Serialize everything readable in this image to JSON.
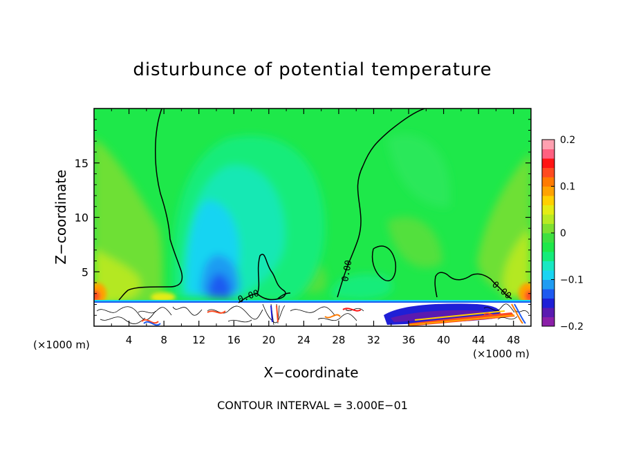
{
  "chart_data": {
    "type": "heatmap",
    "title": "disturbunce of potential temperature",
    "xlabel": "X−coordinate",
    "ylabel": "Z−coordinate",
    "x_unit_left": "(×1000 m)",
    "x_unit_right": "(×1000 m)",
    "xlim": [
      0,
      50
    ],
    "ylim": [
      0,
      20
    ],
    "x_ticks": [
      4,
      8,
      12,
      16,
      20,
      24,
      28,
      32,
      36,
      40,
      44,
      48
    ],
    "x_tick_labels": [
      "4",
      "8",
      "12",
      "16",
      "20",
      "24",
      "28",
      "32",
      "36",
      "40",
      "44",
      "48"
    ],
    "y_ticks": [
      5,
      10,
      15
    ],
    "y_tick_labels": [
      "5",
      "10",
      "15"
    ],
    "colorbar": {
      "range": [
        -0.2,
        0.2
      ],
      "ticks": [
        0.2,
        0.1,
        0,
        -0.1,
        -0.2
      ],
      "tick_labels": [
        "0.2",
        "0.1",
        "0",
        "−0.1",
        "−0.2"
      ],
      "colors": [
        "#8b1fa8",
        "#5a1ab0",
        "#1f1fd6",
        "#1e5af0",
        "#1f9cf2",
        "#19d4f2",
        "#18e8c2",
        "#14ec7a",
        "#1ee84a",
        "#3ee040",
        "#7ee030",
        "#b8ea22",
        "#e4ec14",
        "#ffd000",
        "#ffa200",
        "#ff7a00",
        "#ff4a20",
        "#ff1414",
        "#ff6080",
        "#ffa0b0"
      ]
    },
    "contour_labels": [
      "0.00",
      "0.00",
      "0.00"
    ],
    "contour_interval": "CONTOUR INTERVAL = 3.000E−01",
    "background_value": 0.0,
    "features": [
      {
        "name": "cool-core",
        "x": 14.5,
        "z": 6.0,
        "value": -0.1
      },
      {
        "name": "cool-plume",
        "x": 18.0,
        "z": 10.0,
        "value": -0.02
      },
      {
        "name": "warm-left-edge",
        "x": 0.5,
        "z": 2.5,
        "value": 0.12
      },
      {
        "name": "warm-right-edge",
        "x": 49.5,
        "z": 2.5,
        "value": 0.12
      },
      {
        "name": "cold-pool-right",
        "x": 38.0,
        "z": 1.0,
        "value": -0.2
      }
    ]
  }
}
